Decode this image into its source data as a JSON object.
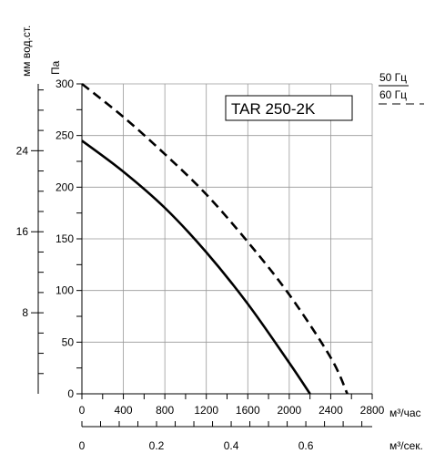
{
  "chart_data": {
    "type": "line",
    "model_label": "TAR 250-2K",
    "x_axis": {
      "label": "м³/час",
      "ticks": [
        0,
        400,
        800,
        1200,
        1600,
        2000,
        2400,
        2800
      ],
      "range": [
        0,
        2800
      ]
    },
    "x_axis_secondary": {
      "label": "м³/сек.",
      "ticks": [
        "0",
        "0.2",
        "0.4",
        "0.6"
      ],
      "tick_values": [
        0,
        0.2,
        0.4,
        0.6
      ],
      "range": [
        0,
        0.7778
      ]
    },
    "y_axis": {
      "label": "Па",
      "ticks": [
        0,
        50,
        100,
        150,
        200,
        250,
        300
      ],
      "range": [
        0,
        300
      ]
    },
    "y_axis_secondary": {
      "label": "мм вод.ст.",
      "ticks": [
        "8",
        "16",
        "24"
      ],
      "tick_values": [
        8,
        16,
        24
      ],
      "range": [
        0,
        30.6
      ]
    },
    "grid": true,
    "legend": {
      "placement": "top-right",
      "entries": [
        {
          "label": "50 Гц",
          "style": "solid"
        },
        {
          "label": "60 Гц",
          "style": "dashed"
        }
      ]
    },
    "series": [
      {
        "name": "50 Гц",
        "style": "solid",
        "x": [
          0,
          400,
          800,
          1200,
          1600,
          2000,
          2200
        ],
        "y": [
          245,
          215,
          180,
          137,
          87,
          30,
          0
        ]
      },
      {
        "name": "60 Гц",
        "style": "dashed",
        "x": [
          0,
          400,
          800,
          1200,
          1600,
          2000,
          2400,
          2560
        ],
        "y": [
          300,
          268,
          232,
          193,
          147,
          96,
          35,
          0
        ]
      }
    ]
  }
}
